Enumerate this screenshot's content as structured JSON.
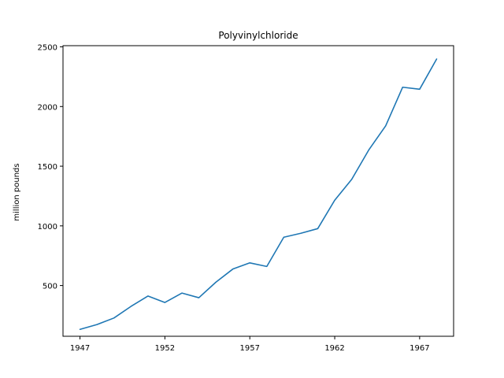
{
  "chart_data": {
    "type": "line",
    "title": "Polyvinylchloride",
    "xlabel": "",
    "ylabel": "million pounds",
    "x": [
      1947,
      1948,
      1949,
      1950,
      1951,
      1952,
      1953,
      1954,
      1955,
      1956,
      1957,
      1958,
      1959,
      1960,
      1961,
      1962,
      1963,
      1964,
      1965,
      1966,
      1967,
      1968
    ],
    "series": [
      {
        "name": "",
        "color": "#1f77b4",
        "values": [
          133,
          173,
          228,
          325,
          412,
          358,
          437,
          398,
          528,
          638,
          690,
          660,
          905,
          938,
          977,
          1215,
          1390,
          1635,
          1838,
          2162,
          2145,
          2398
        ]
      }
    ],
    "xlim": [
      1946.0,
      1969.0
    ],
    "ylim": [
      75,
      2510
    ],
    "xticks": [
      1947,
      1952,
      1957,
      1962,
      1967
    ],
    "yticks": [
      500,
      1000,
      1500,
      2000,
      2500
    ],
    "grid": false,
    "legend": "none"
  }
}
